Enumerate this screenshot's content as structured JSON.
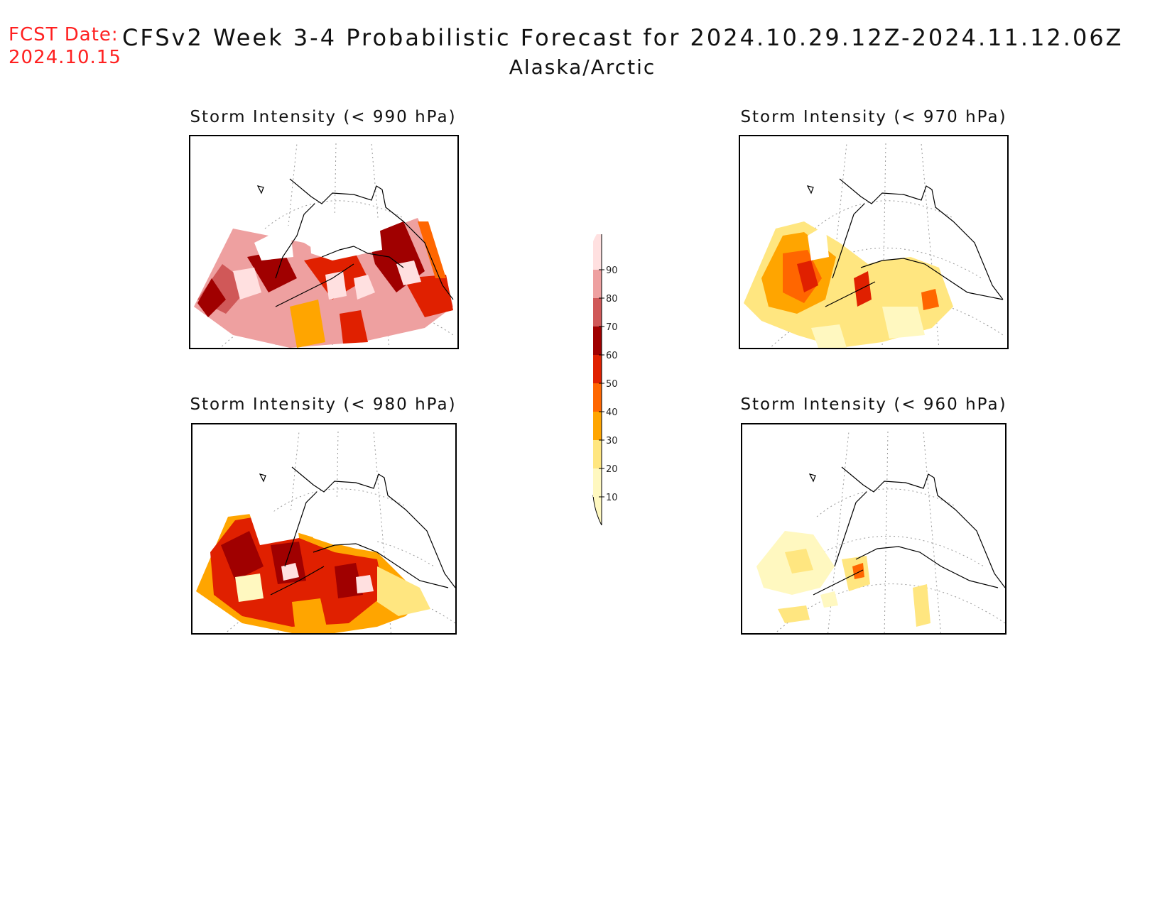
{
  "header": {
    "fcst_label": "FCST Date:",
    "fcst_date": "2024.10.15",
    "title": "CFSv2 Week 3-4 Probabilistic Forecast for 2024.10.29.12Z-2024.11.12.06Z",
    "subtitle": "Alaska/Arctic"
  },
  "panels": [
    {
      "id": "p990",
      "title": "Storm Intensity (< 990 hPa)"
    },
    {
      "id": "p970",
      "title": "Storm Intensity (< 970 hPa)"
    },
    {
      "id": "p980",
      "title": "Storm Intensity (< 980 hPa)"
    },
    {
      "id": "p960",
      "title": "Storm Intensity (< 960 hPa)"
    }
  ],
  "colorbar": {
    "levels": [
      "10",
      "20",
      "30",
      "40",
      "50",
      "60",
      "70",
      "80",
      "90"
    ],
    "colors": [
      "#fff8c0",
      "#ffe680",
      "#ffa500",
      "#ff6600",
      "#e02000",
      "#a00000",
      "#d05858",
      "#eea0a0",
      "#ffe0e0"
    ]
  },
  "chart_data": {
    "type": "heatmap",
    "region": "Alaska/Arctic",
    "variable": "Storm Intensity",
    "thresholds_hPa": [
      990,
      970,
      980,
      960
    ],
    "contour_levels": [
      10,
      20,
      30,
      40,
      50,
      60,
      70,
      80,
      90
    ]
  }
}
